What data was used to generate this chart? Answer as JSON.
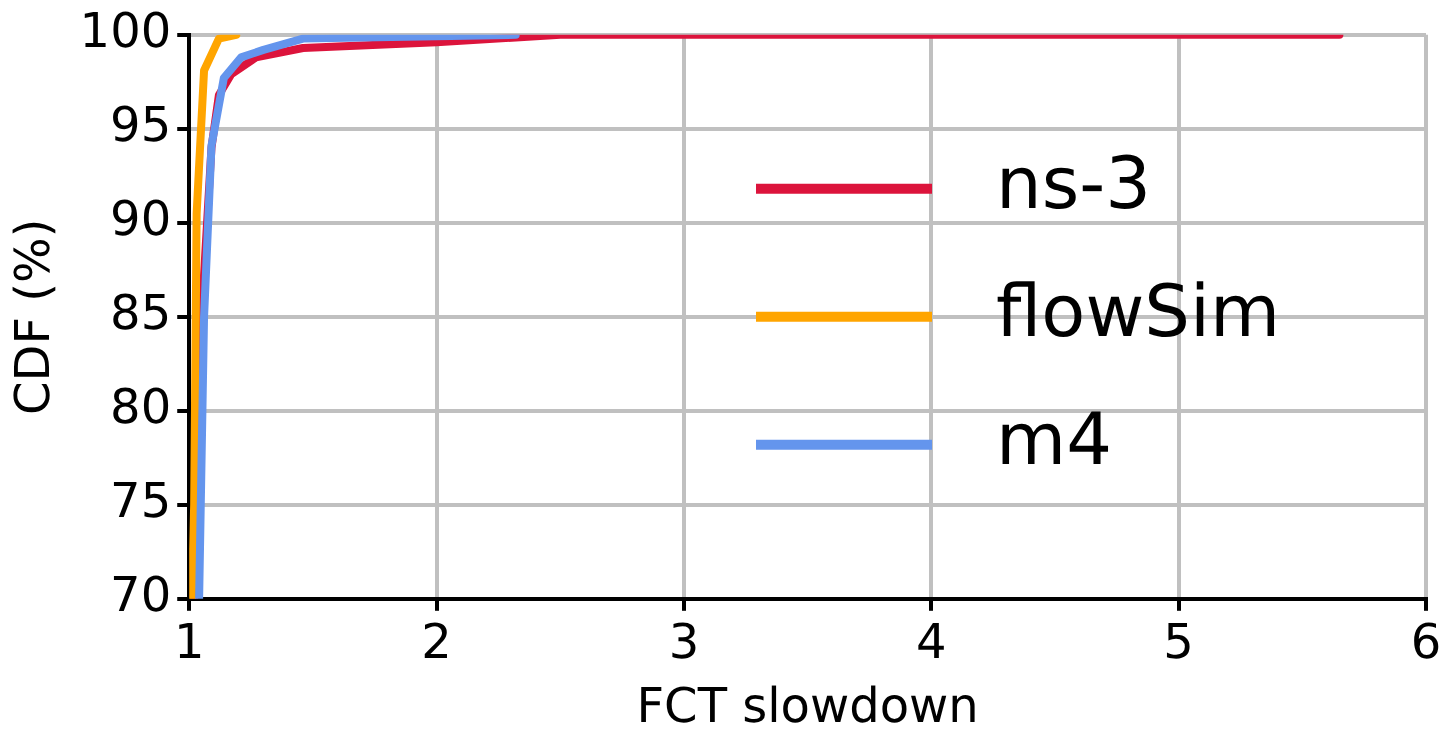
{
  "chart_data": {
    "type": "line",
    "xlabel": "FCT slowdown",
    "ylabel": "CDF (%)",
    "xlim": [
      1,
      6
    ],
    "xticks": [
      1,
      2,
      3,
      4,
      5,
      6
    ],
    "ylim": [
      70,
      100
    ],
    "yticks": [
      70,
      75,
      80,
      85,
      90,
      95,
      100
    ],
    "grid": true,
    "legend": "right",
    "marker": "none",
    "line_style": "solid",
    "series": [
      {
        "name": "ns-3",
        "color": "#dc143c",
        "x": [
          1.02,
          1.05,
          1.09,
          1.12,
          1.17,
          1.27,
          1.46,
          2.0,
          2.5,
          5.65
        ],
        "values": [
          70,
          85,
          94,
          96.8,
          97.9,
          98.8,
          99.3,
          99.6,
          100,
          100
        ]
      },
      {
        "name": "flowSim",
        "color": "#ffa500",
        "x": [
          1.01,
          1.02,
          1.03,
          1.06,
          1.12,
          1.19
        ],
        "values": [
          70,
          75,
          90.5,
          98.1,
          99.8,
          100
        ]
      },
      {
        "name": "m4",
        "color": "#6495ed",
        "x": [
          1.04,
          1.06,
          1.09,
          1.14,
          1.21,
          1.3,
          1.46,
          2.32
        ],
        "values": [
          70,
          85,
          94.1,
          97.7,
          98.8,
          99.2,
          99.8,
          100
        ]
      }
    ]
  }
}
